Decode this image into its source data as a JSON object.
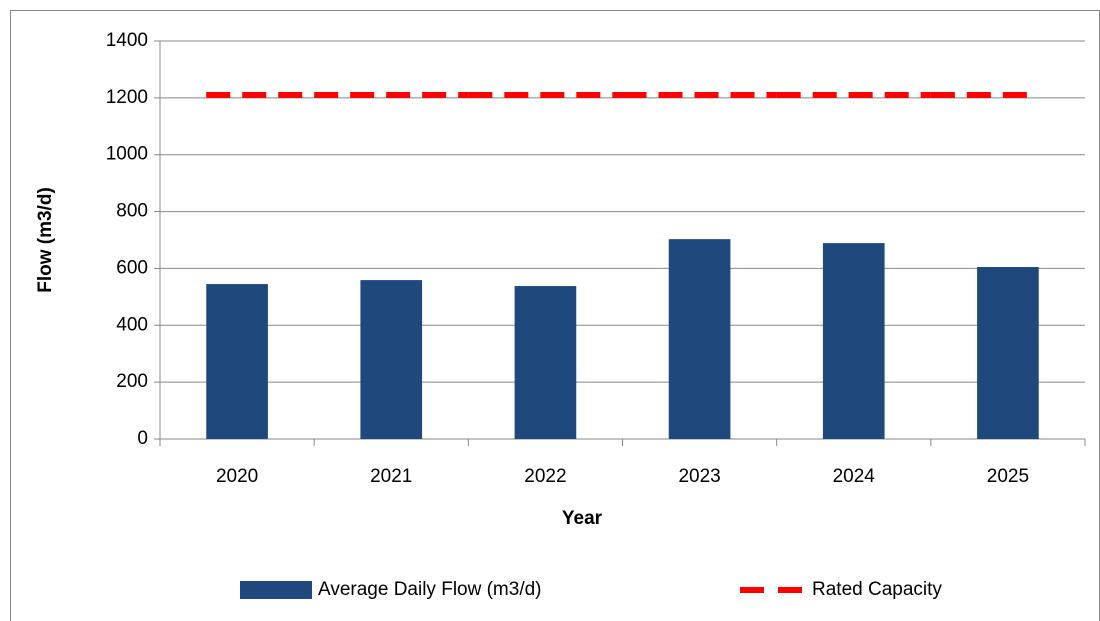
{
  "chart_data": {
    "type": "bar",
    "x_label": "Year",
    "y_label": "Flow (m3/d)",
    "categories": [
      "2020",
      "2021",
      "2022",
      "2023",
      "2024",
      "2025"
    ],
    "series": [
      {
        "name": "Average Daily Flow (m3/d)",
        "type": "bar",
        "color": "#1f497d",
        "values": [
          545,
          559,
          538,
          703,
          689,
          605
        ]
      },
      {
        "name": "Rated Capacity",
        "type": "line",
        "color": "#ff0000",
        "values": [
          1210,
          1210,
          1210,
          1210,
          1210,
          1210
        ]
      }
    ],
    "ylim": [
      0,
      1400
    ],
    "yticks": [
      0,
      200,
      400,
      600,
      800,
      1000,
      1200,
      1400
    ],
    "grid": true,
    "legend": "bottom"
  }
}
